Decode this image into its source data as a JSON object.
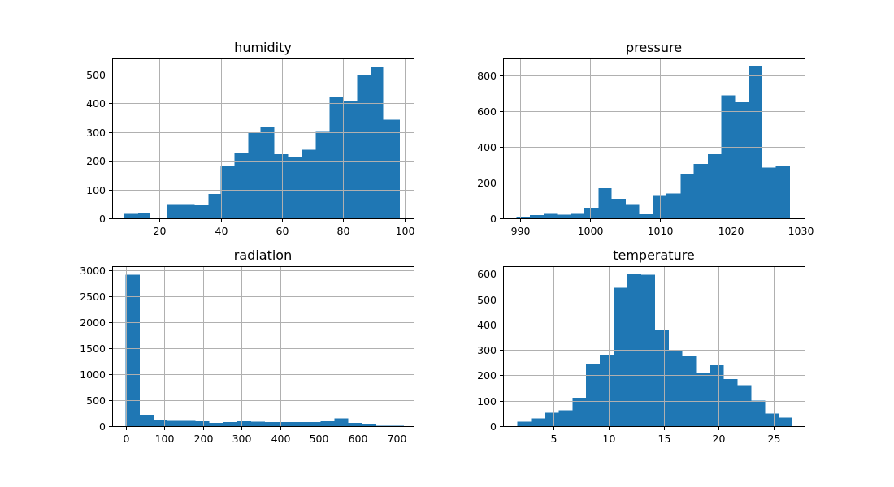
{
  "chart_data": [
    {
      "type": "bar",
      "title": "humidity",
      "grid": true,
      "xlim": [
        4.5,
        103
      ],
      "ylim": [
        0,
        555
      ],
      "xticks": [
        20,
        40,
        60,
        80,
        100
      ],
      "yticks": [
        0,
        100,
        200,
        300,
        400,
        500
      ],
      "bins": [
        {
          "x0": 8.5,
          "x1": 13.0,
          "value": 15
        },
        {
          "x0": 13.0,
          "x1": 17.0,
          "value": 20
        },
        {
          "x0": 17.0,
          "x1": 22.5,
          "value": 0
        },
        {
          "x0": 22.5,
          "x1": 27.0,
          "value": 50
        },
        {
          "x0": 27.0,
          "x1": 31.5,
          "value": 50
        },
        {
          "x0": 31.5,
          "x1": 36.0,
          "value": 47
        },
        {
          "x0": 36.0,
          "x1": 40.0,
          "value": 85
        },
        {
          "x0": 40.0,
          "x1": 44.5,
          "value": 183
        },
        {
          "x0": 44.5,
          "x1": 49.0,
          "value": 228
        },
        {
          "x0": 49.0,
          "x1": 53.0,
          "value": 296
        },
        {
          "x0": 53.0,
          "x1": 57.5,
          "value": 315
        },
        {
          "x0": 57.5,
          "x1": 62.0,
          "value": 222
        },
        {
          "x0": 62.0,
          "x1": 66.5,
          "value": 212
        },
        {
          "x0": 66.5,
          "x1": 71.0,
          "value": 238
        },
        {
          "x0": 71.0,
          "x1": 75.5,
          "value": 300
        },
        {
          "x0": 75.5,
          "x1": 80.0,
          "value": 420
        },
        {
          "x0": 80.0,
          "x1": 84.5,
          "value": 407
        },
        {
          "x0": 84.5,
          "x1": 89.0,
          "value": 498
        },
        {
          "x0": 89.0,
          "x1": 93.0,
          "value": 527
        },
        {
          "x0": 93.0,
          "x1": 98.5,
          "value": 343
        }
      ]
    },
    {
      "type": "bar",
      "title": "pressure",
      "grid": true,
      "xlim": [
        987.6,
        1030.6
      ],
      "ylim": [
        0,
        895
      ],
      "xticks": [
        990,
        1000,
        1010,
        1020,
        1030
      ],
      "yticks": [
        0,
        200,
        400,
        600,
        800
      ],
      "bins": [
        {
          "x0": 989.5,
          "x1": 991.4,
          "value": 8
        },
        {
          "x0": 991.4,
          "x1": 993.4,
          "value": 18
        },
        {
          "x0": 993.4,
          "x1": 995.3,
          "value": 25
        },
        {
          "x0": 995.3,
          "x1": 997.3,
          "value": 20
        },
        {
          "x0": 997.3,
          "x1": 999.2,
          "value": 25
        },
        {
          "x0": 999.2,
          "x1": 1001.2,
          "value": 60
        },
        {
          "x0": 1001.2,
          "x1": 1003.1,
          "value": 168
        },
        {
          "x0": 1003.1,
          "x1": 1005.1,
          "value": 110
        },
        {
          "x0": 1005.1,
          "x1": 1007.0,
          "value": 80
        },
        {
          "x0": 1007.0,
          "x1": 1009.0,
          "value": 22
        },
        {
          "x0": 1009.0,
          "x1": 1010.9,
          "value": 130
        },
        {
          "x0": 1010.9,
          "x1": 1012.9,
          "value": 138
        },
        {
          "x0": 1012.9,
          "x1": 1014.8,
          "value": 250
        },
        {
          "x0": 1014.8,
          "x1": 1016.8,
          "value": 305
        },
        {
          "x0": 1016.8,
          "x1": 1018.7,
          "value": 358
        },
        {
          "x0": 1018.7,
          "x1": 1020.7,
          "value": 688
        },
        {
          "x0": 1020.7,
          "x1": 1022.6,
          "value": 650
        },
        {
          "x0": 1022.6,
          "x1": 1024.6,
          "value": 855
        },
        {
          "x0": 1024.6,
          "x1": 1026.5,
          "value": 285
        },
        {
          "x0": 1026.5,
          "x1": 1028.5,
          "value": 290
        }
      ]
    },
    {
      "type": "bar",
      "title": "radiation",
      "grid": true,
      "xlim": [
        -35,
        745
      ],
      "ylim": [
        0,
        3075
      ],
      "xticks": [
        0,
        100,
        200,
        300,
        400,
        500,
        600,
        700
      ],
      "yticks": [
        0,
        500,
        1000,
        1500,
        2000,
        2500,
        3000
      ],
      "bins": [
        {
          "x0": 0,
          "x1": 36,
          "value": 2910
        },
        {
          "x0": 36,
          "x1": 72,
          "value": 220
        },
        {
          "x0": 72,
          "x1": 108,
          "value": 120
        },
        {
          "x0": 108,
          "x1": 144,
          "value": 105
        },
        {
          "x0": 144,
          "x1": 180,
          "value": 100
        },
        {
          "x0": 180,
          "x1": 216,
          "value": 90
        },
        {
          "x0": 216,
          "x1": 252,
          "value": 60
        },
        {
          "x0": 252,
          "x1": 288,
          "value": 80
        },
        {
          "x0": 288,
          "x1": 324,
          "value": 95
        },
        {
          "x0": 324,
          "x1": 360,
          "value": 85
        },
        {
          "x0": 360,
          "x1": 396,
          "value": 80
        },
        {
          "x0": 396,
          "x1": 432,
          "value": 80
        },
        {
          "x0": 432,
          "x1": 468,
          "value": 80
        },
        {
          "x0": 468,
          "x1": 504,
          "value": 80
        },
        {
          "x0": 504,
          "x1": 540,
          "value": 95
        },
        {
          "x0": 540,
          "x1": 576,
          "value": 150
        },
        {
          "x0": 576,
          "x1": 612,
          "value": 65
        },
        {
          "x0": 612,
          "x1": 648,
          "value": 45
        },
        {
          "x0": 648,
          "x1": 684,
          "value": 10
        },
        {
          "x0": 684,
          "x1": 720,
          "value": 10
        }
      ]
    },
    {
      "type": "bar",
      "title": "temperature",
      "grid": true,
      "xlim": [
        0.4,
        27.8
      ],
      "ylim": [
        0,
        630
      ],
      "xticks": [
        5,
        10,
        15,
        20,
        25
      ],
      "yticks": [
        0,
        100,
        200,
        300,
        400,
        500,
        600
      ],
      "bins": [
        {
          "x0": 1.7,
          "x1": 2.95,
          "value": 17
        },
        {
          "x0": 2.95,
          "x1": 4.2,
          "value": 30
        },
        {
          "x0": 4.2,
          "x1": 5.45,
          "value": 52
        },
        {
          "x0": 5.45,
          "x1": 6.7,
          "value": 63
        },
        {
          "x0": 6.7,
          "x1": 7.95,
          "value": 112
        },
        {
          "x0": 7.95,
          "x1": 9.2,
          "value": 245
        },
        {
          "x0": 9.2,
          "x1": 10.45,
          "value": 282
        },
        {
          "x0": 10.45,
          "x1": 11.7,
          "value": 545
        },
        {
          "x0": 11.7,
          "x1": 12.95,
          "value": 598
        },
        {
          "x0": 12.95,
          "x1": 14.2,
          "value": 596
        },
        {
          "x0": 14.2,
          "x1": 15.45,
          "value": 378
        },
        {
          "x0": 15.45,
          "x1": 16.7,
          "value": 298
        },
        {
          "x0": 16.7,
          "x1": 17.95,
          "value": 278
        },
        {
          "x0": 17.95,
          "x1": 19.2,
          "value": 208
        },
        {
          "x0": 19.2,
          "x1": 20.45,
          "value": 240
        },
        {
          "x0": 20.45,
          "x1": 21.7,
          "value": 185
        },
        {
          "x0": 21.7,
          "x1": 22.95,
          "value": 162
        },
        {
          "x0": 22.95,
          "x1": 24.2,
          "value": 100
        },
        {
          "x0": 24.2,
          "x1": 25.45,
          "value": 50
        },
        {
          "x0": 25.45,
          "x1": 26.7,
          "value": 33
        }
      ]
    }
  ],
  "colors": {
    "bar": "#1f77b4",
    "grid": "#b0b0b0",
    "axes": "#000000"
  }
}
